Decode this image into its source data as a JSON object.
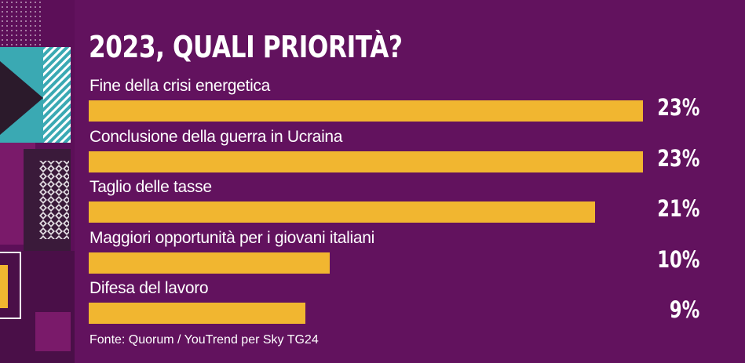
{
  "chart_data": {
    "type": "bar",
    "orientation": "horizontal",
    "title": "2023, QUALI PRIORITÀ?",
    "categories": [
      "Fine della crisi energetica",
      "Conclusione della guerra in Ucraina",
      "Taglio delle tasse",
      "Maggiori opportunità per i giovani italiani",
      "Difesa del lavoro"
    ],
    "values": [
      23,
      23,
      21,
      10,
      9
    ],
    "value_labels": [
      "23%",
      "23%",
      "21%",
      "10%",
      "9%"
    ],
    "unit": "%",
    "bar_color": "#f1b630",
    "background_color": "#62125e",
    "grid": false,
    "legend": "none"
  },
  "source": "Fonte: Quorum / YouTrend per Sky TG24"
}
